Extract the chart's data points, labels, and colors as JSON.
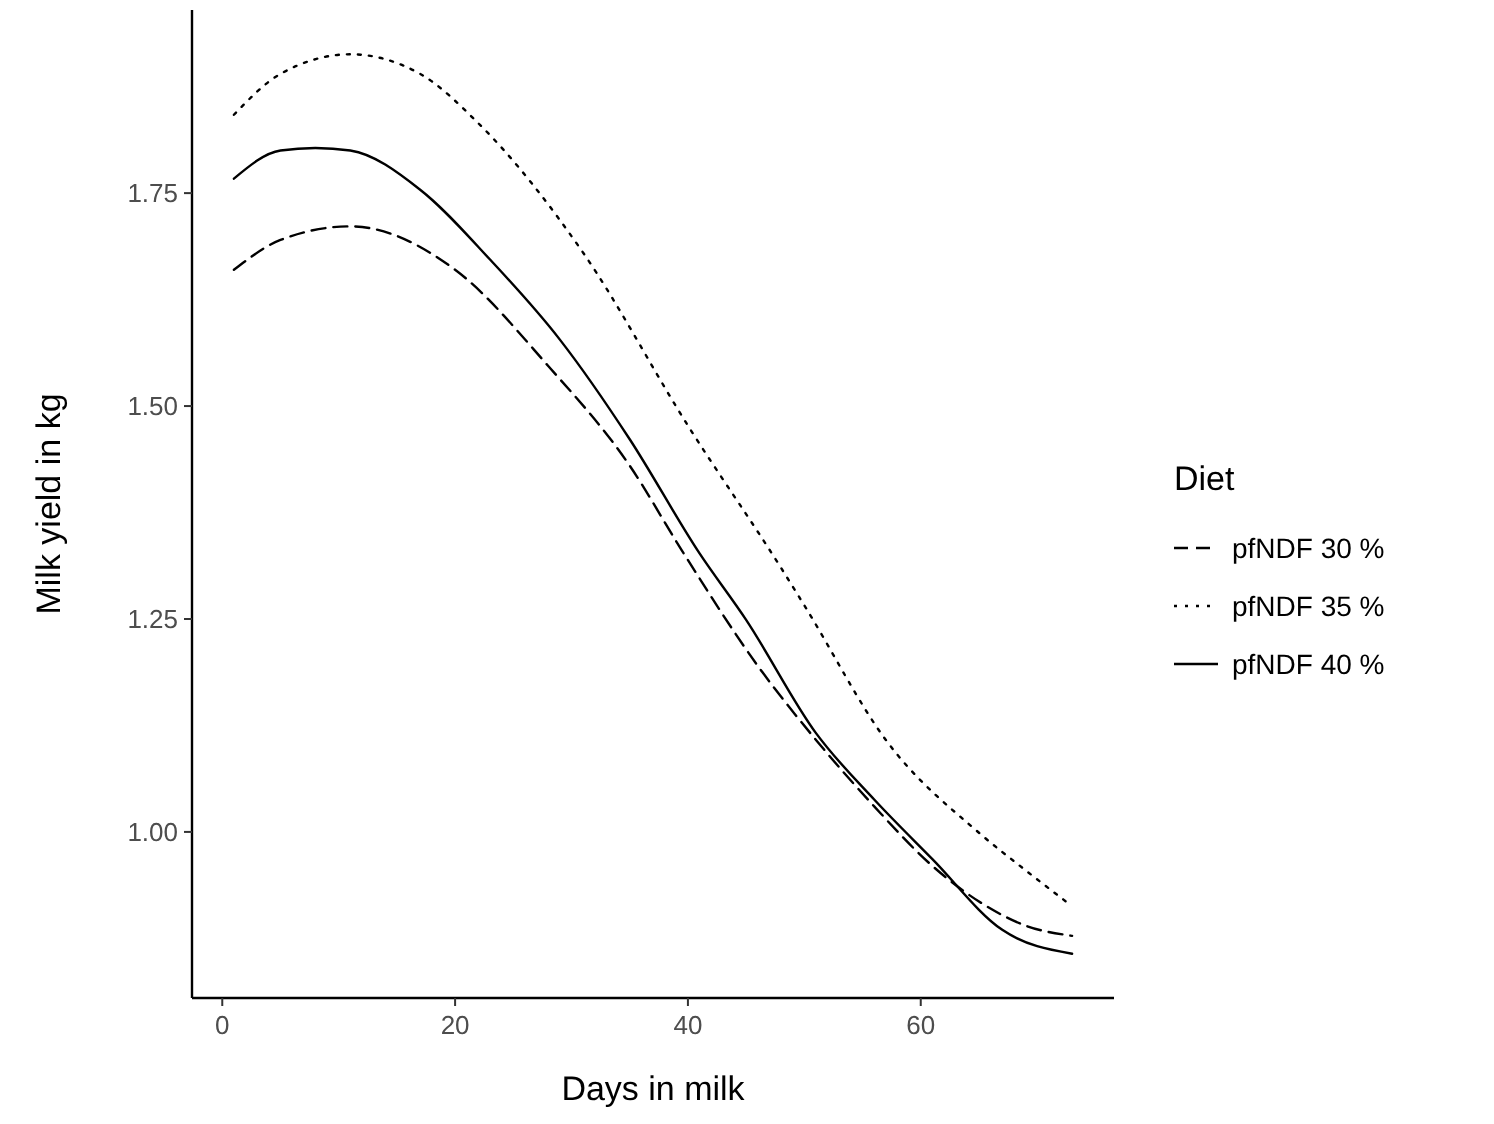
{
  "chart_data": {
    "type": "line",
    "xlabel": "Days in milk",
    "ylabel": "Milk yield in kg",
    "legend_title": "Diet",
    "legend": "right",
    "grid": false,
    "xlim": [
      -2.6,
      76.6
    ],
    "xticks": [
      0,
      20,
      40,
      60
    ],
    "ylim": [
      0.805,
      1.965
    ],
    "yticks": [
      {
        "value": 1,
        "label": "1.00"
      },
      1.25,
      {
        "value": 1.5,
        "label": "1.50"
      },
      1.75
    ],
    "series": [
      {
        "name": "pfNDF 30 %",
        "color": "#000000",
        "line_style": "dashed",
        "x": [
          1,
          5,
          11,
          20,
          28,
          35,
          39.5,
          46,
          51,
          56,
          61,
          65.5,
          69,
          73
        ],
        "values": [
          1.66,
          1.695,
          1.711,
          1.66,
          1.547,
          1.43,
          1.33,
          1.195,
          1.108,
          1.03,
          0.96,
          0.914,
          0.89,
          0.878
        ]
      },
      {
        "name": "pfNDF 35 %",
        "color": "#000000",
        "line_style": "dotted",
        "x": [
          1,
          5,
          11,
          17,
          22,
          31,
          40,
          48,
          50,
          57,
          65,
          69,
          72.5
        ],
        "values": [
          1.842,
          1.89,
          1.913,
          1.89,
          1.832,
          1.68,
          1.477,
          1.31,
          1.266,
          1.108,
          0.999,
          0.955,
          0.918
        ]
      },
      {
        "name": "pfNDF 40 %",
        "color": "#000000",
        "line_style": "solid",
        "x": [
          1,
          5,
          8,
          11,
          17,
          23,
          29,
          35,
          41,
          45,
          51,
          56,
          61,
          67,
          73
        ],
        "values": [
          1.767,
          1.8,
          1.803,
          1.8,
          1.754,
          1.672,
          1.578,
          1.461,
          1.327,
          1.249,
          1.116,
          1.038,
          0.968,
          0.885,
          0.857
        ]
      }
    ]
  }
}
